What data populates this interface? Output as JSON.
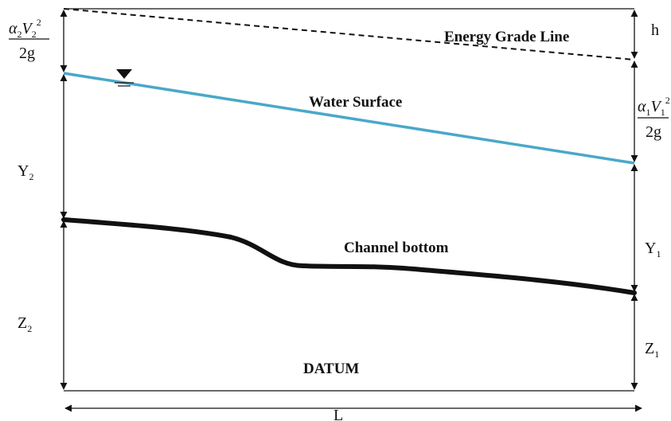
{
  "labels": {
    "energy_grade_line": "Energy Grade Line",
    "water_surface": "Water Surface",
    "channel_bottom": "Channel bottom",
    "datum": "DATUM",
    "head_loss": "h",
    "length": "L",
    "alpha2": "α",
    "alpha2_sub": "2",
    "v2": "V",
    "v2_sub": "2",
    "v2_sup": "2",
    "two_g_left": "2g",
    "alpha1": "α",
    "alpha1_sub": "1",
    "v1": "V",
    "v1_sub": "1",
    "v1_sup": "2",
    "two_g_right": "2g",
    "y2": "Y",
    "y2_sub": "2",
    "y1": "Y",
    "y1_sub": "1",
    "z2": "Z",
    "z2_sub": "2",
    "z1": "Z",
    "z1_sub": "1"
  },
  "colors": {
    "water_surface": "#4aa8c8",
    "lines": "#111111"
  }
}
